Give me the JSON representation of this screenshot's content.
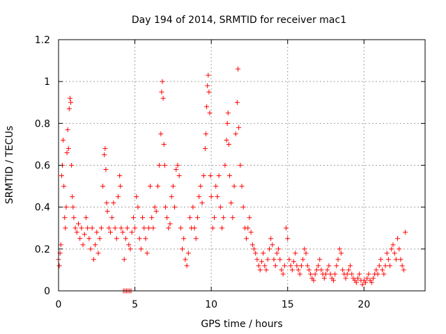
{
  "chart_data": {
    "type": "scatter",
    "title": "Day 194 of 2014, SRMTID for receiver mac1",
    "xlabel": "GPS time / hours",
    "ylabel": "SRMTID / TECUs",
    "xlim": [
      0,
      24
    ],
    "ylim": [
      0,
      1.2
    ],
    "xticks": [
      0,
      5,
      10,
      15,
      20
    ],
    "xtick_labels": [
      "0",
      "5",
      "10",
      "15",
      "20"
    ],
    "yticks": [
      0,
      0.2,
      0.4,
      0.6,
      0.8,
      1,
      1.2
    ],
    "ytick_labels": [
      "0",
      "0.2",
      "0.4",
      "0.6",
      "0.8",
      "1",
      "1.2"
    ],
    "grid": true,
    "marker": "+",
    "color": "#ff0000",
    "series": [
      {
        "name": "SRMTID",
        "points": [
          [
            0.0,
            0.15
          ],
          [
            0.05,
            0.12
          ],
          [
            0.1,
            0.18
          ],
          [
            0.15,
            0.22
          ],
          [
            0.2,
            0.55
          ],
          [
            0.25,
            0.6
          ],
          [
            0.3,
            0.72
          ],
          [
            0.35,
            0.5
          ],
          [
            0.4,
            0.35
          ],
          [
            0.45,
            0.3
          ],
          [
            0.5,
            0.4
          ],
          [
            0.55,
            0.66
          ],
          [
            0.6,
            0.77
          ],
          [
            0.65,
            0.68
          ],
          [
            0.7,
            0.87
          ],
          [
            0.75,
            0.92
          ],
          [
            0.8,
            0.9
          ],
          [
            0.85,
            0.6
          ],
          [
            0.9,
            0.45
          ],
          [
            0.95,
            0.4
          ],
          [
            1.0,
            0.35
          ],
          [
            1.1,
            0.3
          ],
          [
            1.2,
            0.28
          ],
          [
            1.3,
            0.32
          ],
          [
            1.4,
            0.25
          ],
          [
            1.5,
            0.3
          ],
          [
            1.6,
            0.22
          ],
          [
            1.7,
            0.27
          ],
          [
            1.8,
            0.35
          ],
          [
            1.9,
            0.3
          ],
          [
            2.0,
            0.25
          ],
          [
            2.1,
            0.2
          ],
          [
            2.2,
            0.3
          ],
          [
            2.3,
            0.15
          ],
          [
            2.4,
            0.22
          ],
          [
            2.5,
            0.28
          ],
          [
            2.6,
            0.18
          ],
          [
            2.7,
            0.25
          ],
          [
            2.8,
            0.3
          ],
          [
            2.9,
            0.5
          ],
          [
            3.0,
            0.65
          ],
          [
            3.05,
            0.68
          ],
          [
            3.1,
            0.58
          ],
          [
            3.15,
            0.42
          ],
          [
            3.2,
            0.38
          ],
          [
            3.3,
            0.3
          ],
          [
            3.4,
            0.28
          ],
          [
            3.5,
            0.35
          ],
          [
            3.6,
            0.42
          ],
          [
            3.7,
            0.3
          ],
          [
            3.8,
            0.25
          ],
          [
            3.9,
            0.45
          ],
          [
            4.0,
            0.55
          ],
          [
            4.05,
            0.5
          ],
          [
            4.1,
            0.3
          ],
          [
            4.2,
            0.28
          ],
          [
            4.25,
            0.0
          ],
          [
            4.35,
            0.0
          ],
          [
            4.45,
            0.0
          ],
          [
            4.55,
            0.0
          ],
          [
            4.65,
            0.0
          ],
          [
            4.75,
            0.0
          ],
          [
            4.3,
            0.15
          ],
          [
            4.4,
            0.25
          ],
          [
            4.5,
            0.3
          ],
          [
            4.6,
            0.22
          ],
          [
            4.7,
            0.2
          ],
          [
            4.8,
            0.28
          ],
          [
            4.9,
            0.35
          ],
          [
            5.0,
            0.3
          ],
          [
            5.1,
            0.45
          ],
          [
            5.2,
            0.4
          ],
          [
            5.3,
            0.25
          ],
          [
            5.4,
            0.2
          ],
          [
            5.5,
            0.35
          ],
          [
            5.6,
            0.3
          ],
          [
            5.7,
            0.25
          ],
          [
            5.8,
            0.18
          ],
          [
            5.9,
            0.3
          ],
          [
            6.0,
            0.5
          ],
          [
            6.1,
            0.35
          ],
          [
            6.2,
            0.3
          ],
          [
            6.3,
            0.4
          ],
          [
            6.4,
            0.38
          ],
          [
            6.5,
            0.5
          ],
          [
            6.6,
            0.6
          ],
          [
            6.7,
            0.75
          ],
          [
            6.75,
            0.95
          ],
          [
            6.8,
            1.0
          ],
          [
            6.85,
            0.92
          ],
          [
            6.9,
            0.7
          ],
          [
            6.95,
            0.6
          ],
          [
            7.0,
            0.4
          ],
          [
            7.1,
            0.35
          ],
          [
            7.2,
            0.3
          ],
          [
            7.3,
            0.32
          ],
          [
            7.4,
            0.45
          ],
          [
            7.5,
            0.5
          ],
          [
            7.6,
            0.4
          ],
          [
            7.7,
            0.58
          ],
          [
            7.8,
            0.6
          ],
          [
            7.9,
            0.55
          ],
          [
            8.0,
            0.3
          ],
          [
            8.1,
            0.2
          ],
          [
            8.2,
            0.25
          ],
          [
            8.3,
            0.15
          ],
          [
            8.4,
            0.12
          ],
          [
            8.5,
            0.18
          ],
          [
            8.6,
            0.35
          ],
          [
            8.7,
            0.3
          ],
          [
            8.8,
            0.4
          ],
          [
            8.9,
            0.3
          ],
          [
            9.0,
            0.25
          ],
          [
            9.1,
            0.35
          ],
          [
            9.2,
            0.45
          ],
          [
            9.3,
            0.5
          ],
          [
            9.4,
            0.42
          ],
          [
            9.5,
            0.55
          ],
          [
            9.6,
            0.68
          ],
          [
            9.65,
            0.75
          ],
          [
            9.7,
            0.88
          ],
          [
            9.75,
            0.98
          ],
          [
            9.8,
            1.03
          ],
          [
            9.85,
            0.95
          ],
          [
            9.9,
            0.85
          ],
          [
            9.95,
            0.55
          ],
          [
            10.0,
            0.45
          ],
          [
            10.1,
            0.3
          ],
          [
            10.2,
            0.35
          ],
          [
            10.3,
            0.5
          ],
          [
            10.4,
            0.45
          ],
          [
            10.5,
            0.55
          ],
          [
            10.6,
            0.4
          ],
          [
            10.7,
            0.3
          ],
          [
            10.8,
            0.35
          ],
          [
            10.9,
            0.6
          ],
          [
            11.0,
            0.72
          ],
          [
            11.05,
            0.8
          ],
          [
            11.1,
            0.85
          ],
          [
            11.15,
            0.7
          ],
          [
            11.2,
            0.55
          ],
          [
            11.3,
            0.42
          ],
          [
            11.4,
            0.35
          ],
          [
            11.5,
            0.5
          ],
          [
            11.6,
            0.75
          ],
          [
            11.7,
            0.9
          ],
          [
            11.75,
            1.06
          ],
          [
            11.8,
            0.78
          ],
          [
            11.9,
            0.6
          ],
          [
            12.0,
            0.5
          ],
          [
            12.1,
            0.4
          ],
          [
            12.2,
            0.3
          ],
          [
            12.3,
            0.25
          ],
          [
            12.4,
            0.3
          ],
          [
            12.5,
            0.35
          ],
          [
            12.6,
            0.28
          ],
          [
            12.7,
            0.22
          ],
          [
            12.8,
            0.2
          ],
          [
            12.9,
            0.18
          ],
          [
            13.0,
            0.15
          ],
          [
            13.1,
            0.12
          ],
          [
            13.2,
            0.1
          ],
          [
            13.3,
            0.14
          ],
          [
            13.4,
            0.18
          ],
          [
            13.5,
            0.12
          ],
          [
            13.6,
            0.1
          ],
          [
            13.7,
            0.15
          ],
          [
            13.8,
            0.2
          ],
          [
            13.9,
            0.25
          ],
          [
            14.0,
            0.22
          ],
          [
            14.1,
            0.15
          ],
          [
            14.2,
            0.12
          ],
          [
            14.3,
            0.18
          ],
          [
            14.4,
            0.2
          ],
          [
            14.5,
            0.15
          ],
          [
            14.6,
            0.1
          ],
          [
            14.7,
            0.08
          ],
          [
            14.8,
            0.12
          ],
          [
            14.9,
            0.3
          ],
          [
            15.0,
            0.25
          ],
          [
            15.1,
            0.15
          ],
          [
            15.2,
            0.12
          ],
          [
            15.3,
            0.1
          ],
          [
            15.4,
            0.14
          ],
          [
            15.5,
            0.18
          ],
          [
            15.6,
            0.12
          ],
          [
            15.7,
            0.1
          ],
          [
            15.8,
            0.08
          ],
          [
            15.9,
            0.12
          ],
          [
            16.0,
            0.15
          ],
          [
            16.1,
            0.2
          ],
          [
            16.2,
            0.18
          ],
          [
            16.3,
            0.12
          ],
          [
            16.4,
            0.1
          ],
          [
            16.5,
            0.08
          ],
          [
            16.6,
            0.06
          ],
          [
            16.7,
            0.05
          ],
          [
            16.8,
            0.08
          ],
          [
            16.9,
            0.1
          ],
          [
            17.0,
            0.12
          ],
          [
            17.1,
            0.15
          ],
          [
            17.2,
            0.1
          ],
          [
            17.3,
            0.08
          ],
          [
            17.4,
            0.06
          ],
          [
            17.5,
            0.08
          ],
          [
            17.6,
            0.1
          ],
          [
            17.7,
            0.12
          ],
          [
            17.8,
            0.08
          ],
          [
            17.9,
            0.06
          ],
          [
            18.0,
            0.05
          ],
          [
            18.1,
            0.08
          ],
          [
            18.2,
            0.12
          ],
          [
            18.3,
            0.15
          ],
          [
            18.4,
            0.2
          ],
          [
            18.5,
            0.18
          ],
          [
            18.6,
            0.1
          ],
          [
            18.7,
            0.08
          ],
          [
            18.8,
            0.06
          ],
          [
            18.9,
            0.08
          ],
          [
            19.0,
            0.1
          ],
          [
            19.1,
            0.12
          ],
          [
            19.2,
            0.08
          ],
          [
            19.3,
            0.06
          ],
          [
            19.4,
            0.05
          ],
          [
            19.5,
            0.04
          ],
          [
            19.6,
            0.06
          ],
          [
            19.7,
            0.08
          ],
          [
            19.8,
            0.05
          ],
          [
            19.9,
            0.03
          ],
          [
            20.0,
            0.05
          ],
          [
            20.1,
            0.04
          ],
          [
            20.2,
            0.06
          ],
          [
            20.3,
            0.08
          ],
          [
            20.4,
            0.05
          ],
          [
            20.5,
            0.04
          ],
          [
            20.6,
            0.06
          ],
          [
            20.7,
            0.08
          ],
          [
            20.8,
            0.1
          ],
          [
            20.9,
            0.08
          ],
          [
            21.0,
            0.12
          ],
          [
            21.1,
            0.15
          ],
          [
            21.2,
            0.1
          ],
          [
            21.3,
            0.08
          ],
          [
            21.4,
            0.12
          ],
          [
            21.5,
            0.18
          ],
          [
            21.6,
            0.15
          ],
          [
            21.7,
            0.12
          ],
          [
            21.8,
            0.2
          ],
          [
            21.9,
            0.22
          ],
          [
            22.0,
            0.18
          ],
          [
            22.1,
            0.15
          ],
          [
            22.2,
            0.25
          ],
          [
            22.3,
            0.2
          ],
          [
            22.4,
            0.15
          ],
          [
            22.5,
            0.12
          ],
          [
            22.6,
            0.1
          ],
          [
            22.7,
            0.28
          ]
        ]
      }
    ]
  }
}
